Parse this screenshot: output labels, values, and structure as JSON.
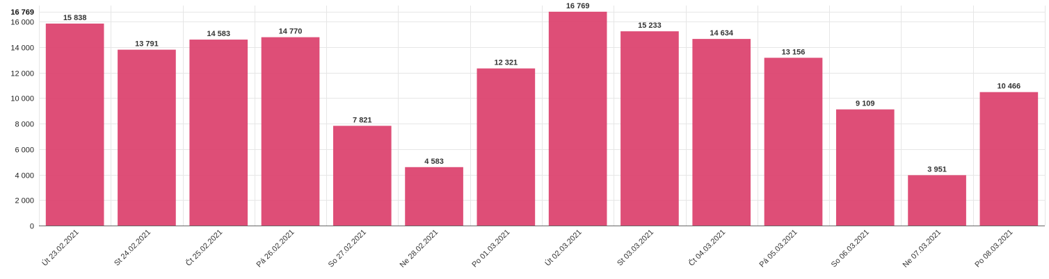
{
  "chart_data": {
    "type": "bar",
    "title": "",
    "xlabel": "",
    "ylabel": "",
    "categories": [
      "Út 23.02.2021",
      "St 24.02.2021",
      "Čt 25.02.2021",
      "Pá 26.02.2021",
      "So 27.02.2021",
      "Ne 28.02.2021",
      "Po 01.03.2021",
      "Út 02.03.2021",
      "St 03.03.2021",
      "Čt 04.03.2021",
      "Pá 05.03.2021",
      "So 06.03.2021",
      "Ne 07.03.2021",
      "Po 08.03.2021"
    ],
    "values": [
      15838,
      13791,
      14583,
      14770,
      7821,
      4583,
      12321,
      16769,
      15233,
      14634,
      13156,
      9109,
      3951,
      10466
    ],
    "value_labels": [
      "15 838",
      "13 791",
      "14 583",
      "14 770",
      "7 821",
      "4 583",
      "12 321",
      "16 769",
      "15 233",
      "14 634",
      "13 156",
      "9 109",
      "3 951",
      "10 466"
    ],
    "ylim": [
      0,
      16769
    ],
    "yticks": [
      0,
      2000,
      4000,
      6000,
      8000,
      10000,
      12000,
      14000,
      16000
    ],
    "ytick_labels": [
      "0",
      "2 000",
      "4 000",
      "6 000",
      "8 000",
      "10 000",
      "12 000",
      "14 000",
      "16 000"
    ],
    "ymax_label": "16 769",
    "grid": true,
    "bar_color": "#dc4570"
  }
}
